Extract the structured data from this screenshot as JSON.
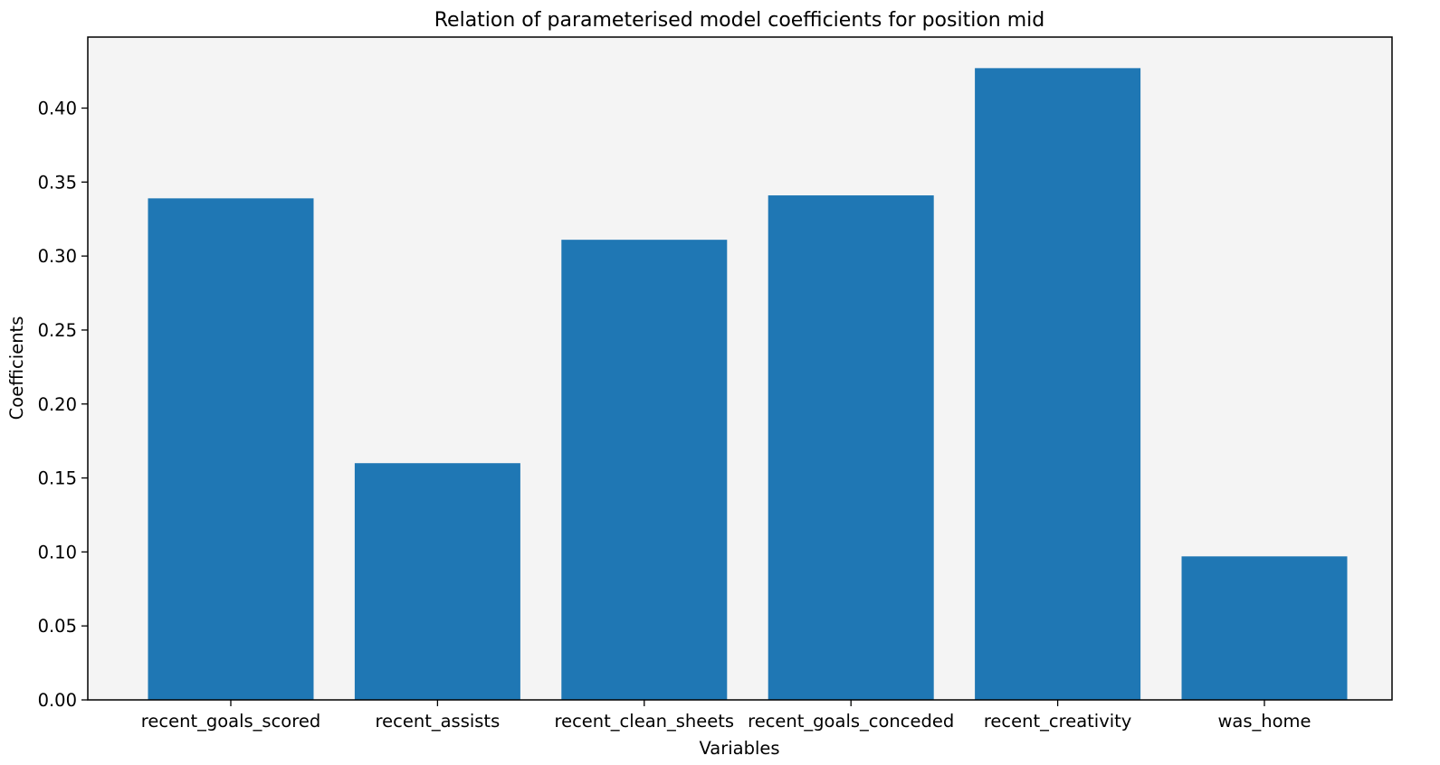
{
  "chart_data": {
    "type": "bar",
    "title": "Relation of parameterised model coefficients for position mid",
    "xlabel": "Variables",
    "ylabel": "Coefficients",
    "categories": [
      "recent_goals_scored",
      "recent_assists",
      "recent_clean_sheets",
      "recent_goals_conceded",
      "recent_creativity",
      "was_home"
    ],
    "values": [
      0.339,
      0.16,
      0.311,
      0.341,
      0.427,
      0.097
    ],
    "ylim": [
      0,
      0.448
    ],
    "yticks": [
      "0.00",
      "0.05",
      "0.10",
      "0.15",
      "0.20",
      "0.25",
      "0.30",
      "0.35",
      "0.40"
    ],
    "grid": false,
    "legend": "none",
    "colors": {
      "bar": "#1f77b4",
      "plot_background": "#f4f4f4",
      "axes": "#000000"
    }
  }
}
